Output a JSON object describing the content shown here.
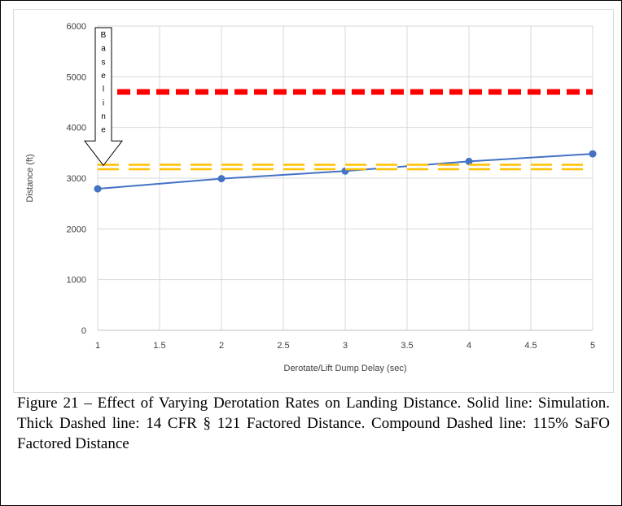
{
  "caption": "Figure 21 – Effect of Varying Derotation Rates on Landing Distance. Solid line: Simulation. Thick Dashed line: 14 CFR § 121 Factored Distance. Compound Dashed line: 115% SaFO Factored Distance",
  "chart_data": {
    "type": "line",
    "title": "",
    "xlabel": "Derotate/Lift Dump Delay (sec)",
    "ylabel": "Distance (ft)",
    "xlim": [
      1,
      5
    ],
    "ylim": [
      0,
      6000
    ],
    "x_ticks": [
      "1",
      "1.5",
      "2",
      "2.5",
      "3",
      "3.5",
      "4",
      "4.5",
      "5"
    ],
    "y_ticks": [
      "0",
      "1000",
      "2000",
      "3000",
      "4000",
      "5000",
      "6000"
    ],
    "grid": true,
    "legend": "none",
    "series": [
      {
        "x": [
          1,
          2,
          3,
          4,
          5
        ],
        "values": [
          2790,
          2990,
          3140,
          3330,
          3480
        ],
        "style": "solid",
        "color": "#4472c4",
        "markers": true
      },
      {
        "x": [
          1,
          5
        ],
        "values": [
          4700,
          4700
        ],
        "style": "thick-dashed",
        "color": "#ff0000"
      },
      {
        "x": [
          1,
          5
        ],
        "values": [
          3220,
          3220
        ],
        "style": "compound-dashed",
        "color": "#ffc000"
      }
    ],
    "annotation": {
      "letters": [
        "B",
        "a",
        "s",
        "e",
        "l",
        "i",
        "n",
        "e"
      ],
      "x": 1,
      "points_to_y": 3220
    }
  }
}
